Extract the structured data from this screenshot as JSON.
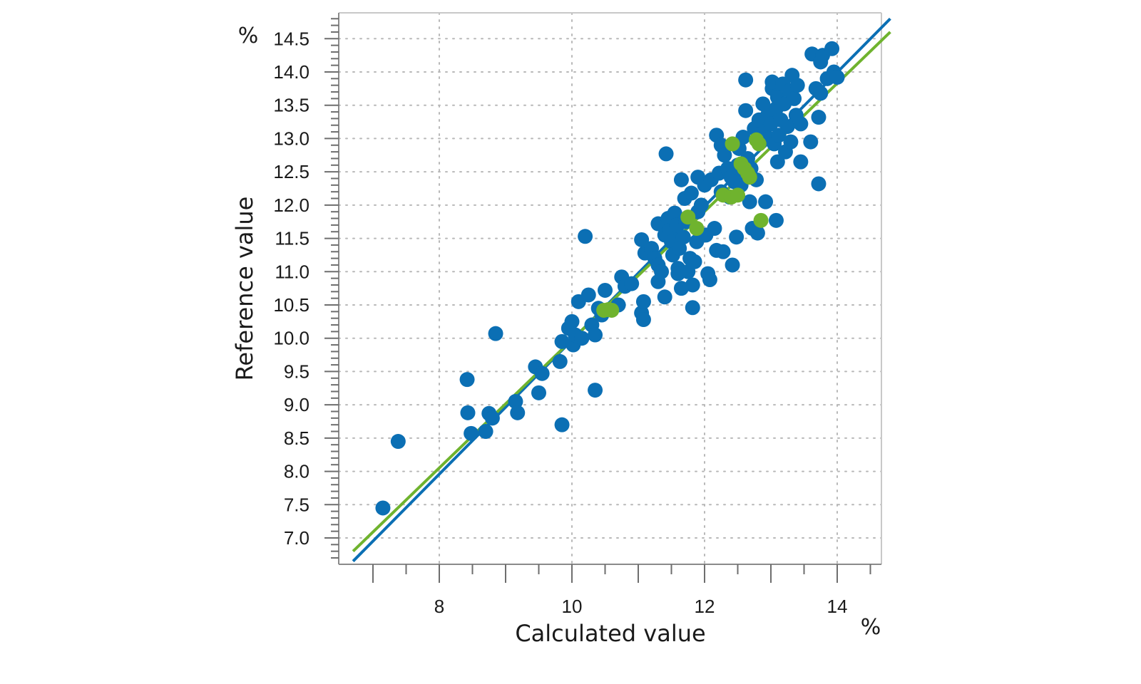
{
  "chart_data": {
    "type": "scatter",
    "title": "",
    "xlabel": "Calculated value",
    "ylabel": "Reference value",
    "x_unit": "%",
    "y_unit": "%",
    "xlim": [
      6.7,
      14.8
    ],
    "ylim": [
      6.65,
      14.85
    ],
    "x_ticks": [
      8,
      10,
      12,
      14
    ],
    "y_ticks": [
      7.0,
      7.5,
      8.0,
      8.5,
      9.0,
      9.5,
      10.0,
      10.5,
      11.0,
      11.5,
      12.0,
      12.5,
      13.0,
      13.5,
      14.0,
      14.5
    ],
    "x_tick_labels": [
      "8",
      "10",
      "12",
      "14"
    ],
    "y_tick_labels": [
      "7.0",
      "7.5",
      "8.0",
      "8.5",
      "9.0",
      "9.5",
      "10.0",
      "10.5",
      "11.0",
      "11.5",
      "12.0",
      "12.5",
      "13.0",
      "13.5",
      "14.0",
      "14.5"
    ],
    "x_minor_step": 0.5,
    "y_minor_step": 0.1,
    "grid": true,
    "colors": {
      "calibration": "#0b6fb4",
      "validation": "#6fb32e",
      "grid": "#b8b8b8",
      "axis": "#8a8a8a"
    },
    "series": [
      {
        "key": "calibration",
        "points": [
          [
            7.15,
            7.45
          ],
          [
            7.38,
            8.45
          ],
          [
            8.42,
            9.38
          ],
          [
            8.43,
            8.88
          ],
          [
            8.48,
            8.57
          ],
          [
            8.7,
            8.6
          ],
          [
            8.75,
            8.87
          ],
          [
            8.8,
            8.8
          ],
          [
            8.85,
            10.07
          ],
          [
            9.15,
            9.05
          ],
          [
            9.18,
            8.88
          ],
          [
            9.45,
            9.57
          ],
          [
            9.5,
            9.18
          ],
          [
            9.55,
            9.47
          ],
          [
            9.82,
            9.65
          ],
          [
            9.85,
            8.7
          ],
          [
            9.85,
            9.95
          ],
          [
            9.95,
            10.15
          ],
          [
            10.0,
            10.25
          ],
          [
            10.02,
            9.9
          ],
          [
            10.05,
            10.05
          ],
          [
            10.1,
            10.55
          ],
          [
            10.15,
            10.0
          ],
          [
            10.2,
            11.53
          ],
          [
            10.25,
            10.65
          ],
          [
            10.3,
            10.2
          ],
          [
            10.35,
            10.05
          ],
          [
            10.35,
            9.22
          ],
          [
            10.4,
            10.45
          ],
          [
            10.45,
            10.35
          ],
          [
            10.5,
            10.72
          ],
          [
            10.7,
            10.5
          ],
          [
            10.75,
            10.92
          ],
          [
            10.8,
            10.78
          ],
          [
            10.9,
            10.82
          ],
          [
            11.05,
            11.48
          ],
          [
            11.05,
            10.38
          ],
          [
            11.08,
            10.28
          ],
          [
            11.08,
            10.55
          ],
          [
            11.1,
            11.28
          ],
          [
            11.2,
            11.35
          ],
          [
            11.25,
            11.2
          ],
          [
            11.3,
            11.1
          ],
          [
            11.3,
            11.72
          ],
          [
            11.3,
            10.85
          ],
          [
            11.35,
            11.0
          ],
          [
            11.4,
            11.55
          ],
          [
            11.4,
            10.62
          ],
          [
            11.42,
            12.77
          ],
          [
            11.45,
            11.8
          ],
          [
            11.48,
            11.62
          ],
          [
            11.5,
            11.45
          ],
          [
            11.52,
            11.25
          ],
          [
            11.55,
            11.88
          ],
          [
            11.58,
            11.7
          ],
          [
            11.6,
            11.05
          ],
          [
            11.6,
            10.97
          ],
          [
            11.62,
            11.35
          ],
          [
            11.65,
            12.38
          ],
          [
            11.65,
            10.75
          ],
          [
            11.68,
            11.52
          ],
          [
            11.7,
            12.1
          ],
          [
            11.72,
            11.75
          ],
          [
            11.75,
            11.0
          ],
          [
            11.78,
            11.2
          ],
          [
            11.8,
            12.18
          ],
          [
            11.82,
            10.8
          ],
          [
            11.82,
            10.46
          ],
          [
            11.85,
            11.15
          ],
          [
            11.88,
            11.45
          ],
          [
            11.9,
            11.9
          ],
          [
            11.9,
            12.42
          ],
          [
            11.95,
            12.0
          ],
          [
            12.0,
            12.3
          ],
          [
            12.02,
            11.55
          ],
          [
            12.05,
            10.97
          ],
          [
            12.08,
            10.88
          ],
          [
            12.1,
            12.38
          ],
          [
            12.15,
            11.65
          ],
          [
            12.18,
            11.32
          ],
          [
            12.18,
            13.05
          ],
          [
            12.22,
            12.48
          ],
          [
            12.25,
            12.9
          ],
          [
            12.25,
            12.2
          ],
          [
            12.28,
            11.3
          ],
          [
            12.3,
            12.75
          ],
          [
            12.35,
            12.55
          ],
          [
            12.38,
            12.12
          ],
          [
            12.4,
            12.42
          ],
          [
            12.42,
            11.1
          ],
          [
            12.45,
            12.35
          ],
          [
            12.48,
            11.52
          ],
          [
            12.5,
            12.6
          ],
          [
            12.52,
            12.85
          ],
          [
            12.55,
            12.3
          ],
          [
            12.58,
            13.02
          ],
          [
            12.6,
            12.45
          ],
          [
            12.62,
            13.42
          ],
          [
            12.62,
            13.88
          ],
          [
            12.65,
            12.7
          ],
          [
            12.68,
            12.05
          ],
          [
            12.7,
            12.55
          ],
          [
            12.72,
            11.65
          ],
          [
            12.75,
            13.15
          ],
          [
            12.78,
            12.38
          ],
          [
            12.8,
            11.58
          ],
          [
            12.82,
            13.28
          ],
          [
            12.85,
            12.95
          ],
          [
            12.88,
            13.52
          ],
          [
            12.9,
            13.1
          ],
          [
            12.92,
            12.05
          ],
          [
            12.95,
            13.35
          ],
          [
            12.98,
            13.0
          ],
          [
            13.0,
            13.22
          ],
          [
            13.02,
            13.75
          ],
          [
            13.02,
            13.85
          ],
          [
            13.05,
            12.92
          ],
          [
            13.08,
            13.45
          ],
          [
            13.08,
            11.77
          ],
          [
            13.1,
            13.62
          ],
          [
            13.1,
            12.65
          ],
          [
            13.12,
            13.05
          ],
          [
            13.15,
            13.28
          ],
          [
            13.18,
            13.82
          ],
          [
            13.2,
            13.52
          ],
          [
            13.22,
            12.8
          ],
          [
            13.25,
            13.18
          ],
          [
            13.28,
            13.72
          ],
          [
            13.3,
            12.95
          ],
          [
            13.32,
            13.95
          ],
          [
            13.35,
            13.6
          ],
          [
            13.38,
            13.35
          ],
          [
            13.4,
            13.8
          ],
          [
            13.45,
            12.65
          ],
          [
            13.45,
            13.22
          ],
          [
            13.6,
            12.95
          ],
          [
            13.62,
            14.27
          ],
          [
            13.68,
            13.75
          ],
          [
            13.72,
            13.32
          ],
          [
            13.72,
            12.32
          ],
          [
            13.75,
            14.15
          ],
          [
            13.75,
            13.68
          ],
          [
            13.78,
            14.25
          ],
          [
            13.85,
            13.9
          ],
          [
            13.92,
            14.35
          ],
          [
            13.95,
            14.0
          ],
          [
            14.0,
            13.92
          ]
        ]
      },
      {
        "key": "validation",
        "points": [
          [
            10.48,
            10.42
          ],
          [
            10.55,
            10.43
          ],
          [
            10.6,
            10.42
          ],
          [
            11.75,
            11.82
          ],
          [
            11.88,
            11.65
          ],
          [
            12.28,
            12.15
          ],
          [
            12.4,
            12.12
          ],
          [
            12.42,
            12.92
          ],
          [
            12.5,
            12.15
          ],
          [
            12.55,
            12.62
          ],
          [
            12.6,
            12.55
          ],
          [
            12.65,
            12.48
          ],
          [
            12.68,
            12.42
          ],
          [
            12.78,
            12.98
          ],
          [
            12.82,
            12.92
          ],
          [
            12.85,
            11.77
          ]
        ]
      }
    ],
    "regression_lines": [
      {
        "key": "calibration",
        "x": [
          6.7,
          14.8
        ],
        "y": [
          6.65,
          14.8
        ]
      },
      {
        "key": "validation",
        "x": [
          6.7,
          14.8
        ],
        "y": [
          6.8,
          14.6
        ]
      }
    ]
  }
}
